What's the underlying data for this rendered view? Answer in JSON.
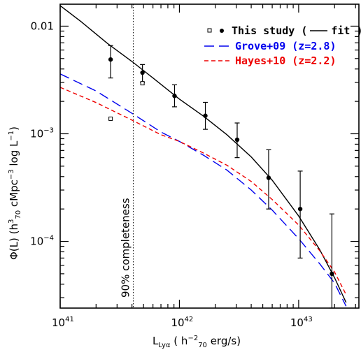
{
  "chart_data": {
    "type": "scatter",
    "x_scale": "log",
    "y_scale": "log",
    "xlim": [
      1e+41,
      3.2e+43
    ],
    "ylim": [
      2.4e-05,
      0.016
    ],
    "xlabel": {
      "main": "L",
      "sub": "Lyα",
      "open": "  ( h",
      "exp1": "−2",
      "sub1": "70",
      "rest": " erg/s)"
    },
    "ylabel": {
      "phi": "Φ(L) (h",
      "exp1": "3",
      "sub1": "70",
      "mid": " cMpc",
      "exp2": "−3",
      "mid2": " log L",
      "exp3": "−1",
      "end": ")"
    },
    "x_ticks": [
      {
        "value": 1e+41,
        "base": "10",
        "exp": "41"
      },
      {
        "value": 1e+42,
        "base": "10",
        "exp": "42"
      },
      {
        "value": 1e+43,
        "base": "10",
        "exp": "43"
      }
    ],
    "y_ticks": [
      {
        "value": 0.01,
        "label": "0.01",
        "base": "",
        "exp": ""
      },
      {
        "value": 0.001,
        "label": "",
        "base": "10",
        "exp": "−3"
      },
      {
        "value": 0.0001,
        "label": "",
        "base": "10",
        "exp": "−4"
      }
    ],
    "completeness": {
      "x": 4.1e+41,
      "label": "90% completeness"
    },
    "series": [
      {
        "name": "This study",
        "marker": "filled-circle",
        "color": "#000000",
        "points": [
          {
            "x": 2.65e+41,
            "y": 0.0049,
            "ylo": 0.0033,
            "yhi": 0.0066
          },
          {
            "x": 4.9e+41,
            "y": 0.0037,
            "ylo": 0.003,
            "yhi": 0.0044
          },
          {
            "x": 9.1e+41,
            "y": 0.00225,
            "ylo": 0.00178,
            "yhi": 0.00285
          },
          {
            "x": 1.65e+42,
            "y": 0.00147,
            "ylo": 0.0011,
            "yhi": 0.00196
          },
          {
            "x": 3.05e+42,
            "y": 0.00088,
            "ylo": 0.0006,
            "yhi": 0.00126
          },
          {
            "x": 5.6e+42,
            "y": 0.00039,
            "ylo": 0.0002,
            "yhi": 0.00071
          },
          {
            "x": 1.03e+43,
            "y": 0.0002,
            "ylo": 7e-05,
            "yhi": 0.00045
          },
          {
            "x": 1.9e+43,
            "y": 5e-05,
            "ylo": 2.4e-05,
            "yhi": 0.00018
          }
        ]
      },
      {
        "name": "This study (open)",
        "marker": "open-square",
        "color": "#000000",
        "points": [
          {
            "x": 2.65e+41,
            "y": 0.00138
          },
          {
            "x": 4.9e+41,
            "y": 0.00295
          }
        ]
      }
    ],
    "curves": [
      {
        "name": "fit",
        "color": "#000000",
        "dash": "",
        "points": [
          [
            1e+41,
            0.0155
          ],
          [
            1.5e+41,
            0.011
          ],
          [
            2.5e+41,
            0.0069
          ],
          [
            4e+41,
            0.0047
          ],
          [
            6e+41,
            0.0033
          ],
          [
            1e+42,
            0.0021
          ],
          [
            1.6e+42,
            0.00145
          ],
          [
            2.5e+42,
            0.00098
          ],
          [
            4e+42,
            0.00061
          ],
          [
            6e+42,
            0.00037
          ],
          [
            1e+43,
            0.000172
          ],
          [
            1.5e+43,
            8.4e-05
          ],
          [
            2e+43,
            4.6e-05
          ],
          [
            2.5e+43,
            2.7e-05
          ]
        ]
      },
      {
        "name": "Grove+09 (z=2.8)",
        "color": "#0000ee",
        "dash": "14,7",
        "points": [
          [
            1e+41,
            0.0036
          ],
          [
            2e+41,
            0.0025
          ],
          [
            4e+41,
            0.00155
          ],
          [
            7e+41,
            0.00104
          ],
          [
            1e+42,
            0.00085
          ],
          [
            1.6e+42,
            0.00063
          ],
          [
            2.5e+42,
            0.00046
          ],
          [
            4e+42,
            0.0003
          ],
          [
            6e+42,
            0.000195
          ],
          [
            1e+43,
            0.000106
          ],
          [
            1.5e+43,
            6.2e-05
          ],
          [
            2e+43,
            4.1e-05
          ],
          [
            2.5e+43,
            2.5e-05
          ]
        ]
      },
      {
        "name": "Hayes+10 (z=2.2)",
        "color": "#ee0000",
        "dash": "6,4",
        "points": [
          [
            1e+41,
            0.0027
          ],
          [
            2e+41,
            0.00195
          ],
          [
            4e+41,
            0.00134
          ],
          [
            7e+41,
            0.00098
          ],
          [
            1e+42,
            0.00085
          ],
          [
            1.6e+42,
            0.00066
          ],
          [
            2.5e+42,
            0.00051
          ],
          [
            4e+42,
            0.00036
          ],
          [
            6e+42,
            0.000245
          ],
          [
            1e+43,
            0.000142
          ],
          [
            1.5e+43,
            8.2e-05
          ],
          [
            2e+43,
            5.2e-05
          ],
          [
            2.5e+43,
            3.2e-05
          ]
        ]
      }
    ],
    "legend": {
      "position": "top-right",
      "items": [
        {
          "label": "This study (",
          "suffix": "fit )",
          "color": "#000000"
        },
        {
          "label": "Grove+09 (z=2.8)",
          "color": "#0000ee"
        },
        {
          "label": "Hayes+10 (z=2.2)",
          "color": "#ee0000"
        }
      ]
    }
  }
}
